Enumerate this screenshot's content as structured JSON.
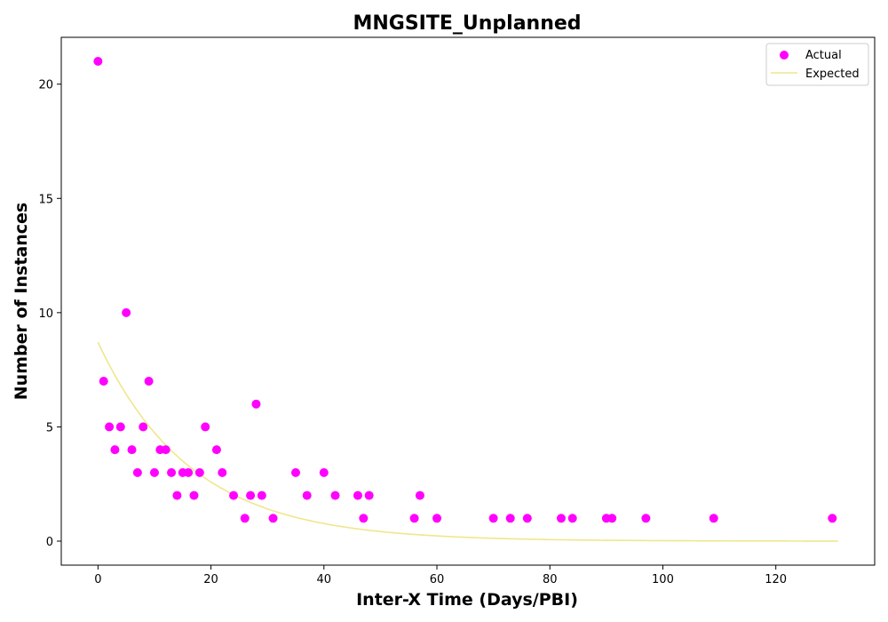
{
  "chart_data": {
    "type": "scatter",
    "title": "MNGSITE_Unplanned",
    "xlabel": "Inter-X Time (Days/PBI)",
    "ylabel": "Number of Instances",
    "xlim": [
      -6.5,
      137.5
    ],
    "ylim": [
      -1.05,
      22.05
    ],
    "xticks": [
      0,
      20,
      40,
      60,
      80,
      100,
      120
    ],
    "yticks": [
      0,
      5,
      10,
      15,
      20
    ],
    "grid": false,
    "legend_position": "upper right",
    "colors": {
      "actual": "#ff00ff",
      "expected": "#f0e68c",
      "axis": "#000000"
    },
    "legend": [
      {
        "label": "Actual",
        "marker": "circle"
      },
      {
        "label": "Expected",
        "marker": "line"
      }
    ],
    "series": [
      {
        "name": "Actual",
        "type": "scatter",
        "points": [
          [
            0,
            21
          ],
          [
            1,
            7
          ],
          [
            2,
            5
          ],
          [
            3,
            4
          ],
          [
            4,
            5
          ],
          [
            5,
            10
          ],
          [
            6,
            4
          ],
          [
            7,
            3
          ],
          [
            8,
            5
          ],
          [
            9,
            7
          ],
          [
            10,
            3
          ],
          [
            11,
            4
          ],
          [
            12,
            4
          ],
          [
            13,
            3
          ],
          [
            14,
            2
          ],
          [
            15,
            3
          ],
          [
            16,
            3
          ],
          [
            17,
            2
          ],
          [
            18,
            3
          ],
          [
            19,
            5
          ],
          [
            21,
            4
          ],
          [
            22,
            3
          ],
          [
            24,
            2
          ],
          [
            26,
            1
          ],
          [
            27,
            2
          ],
          [
            28,
            6
          ],
          [
            29,
            2
          ],
          [
            31,
            1
          ],
          [
            35,
            3
          ],
          [
            37,
            2
          ],
          [
            40,
            3
          ],
          [
            42,
            2
          ],
          [
            46,
            2
          ],
          [
            47,
            1
          ],
          [
            48,
            2
          ],
          [
            56,
            1
          ],
          [
            57,
            2
          ],
          [
            60,
            1
          ],
          [
            70,
            1
          ],
          [
            73,
            1
          ],
          [
            76,
            1
          ],
          [
            82,
            1
          ],
          [
            84,
            1
          ],
          [
            90,
            1
          ],
          [
            91,
            1
          ],
          [
            97,
            1
          ],
          [
            109,
            1
          ],
          [
            130,
            1
          ]
        ]
      },
      {
        "name": "Expected",
        "type": "line",
        "model": "exponential",
        "a": 8.7,
        "b": -0.0606,
        "x_range": [
          0,
          131
        ]
      }
    ]
  }
}
